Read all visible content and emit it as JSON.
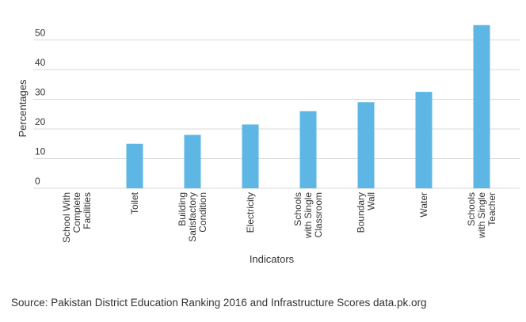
{
  "chart_data": {
    "type": "bar",
    "categories": [
      [
        "School With",
        "Complete",
        "Facilities"
      ],
      [
        "Toilet"
      ],
      [
        "Building",
        "Satisfactory",
        "Condition"
      ],
      [
        "Electricity"
      ],
      [
        "Schools",
        "with Single",
        "Classroom"
      ],
      [
        "Boundary",
        "Wall"
      ],
      [
        "Water"
      ],
      [
        "Schools",
        "with Single",
        "Teacher"
      ]
    ],
    "values": [
      0,
      15,
      18,
      21.5,
      26,
      29,
      32.5,
      55
    ],
    "xlabel": "Indicators",
    "ylabel": "Percentages",
    "yticks": [
      0,
      10,
      20,
      30,
      40,
      50
    ],
    "ylim": [
      0,
      57
    ],
    "grid": "horizontal",
    "bar_color": "#5db6e4",
    "grid_color": "#d9d9d9"
  },
  "source": "Source:  Pakistan District Education Ranking 2016  and Infrastructure Scores data.pk.org"
}
